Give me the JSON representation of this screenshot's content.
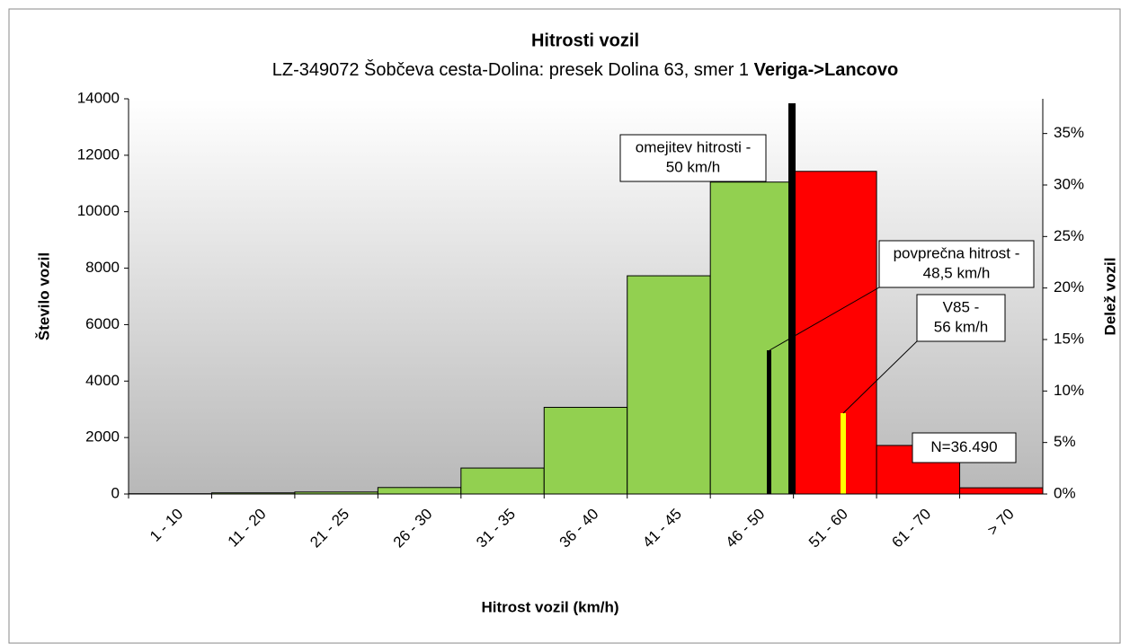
{
  "chart_data": {
    "type": "bar",
    "title": "Hitrosti vozil",
    "subtitle": "LZ-349072 Šobčeva cesta-Dolina: presek Dolina 63, smer 1",
    "subtitle_bold": "Veriga->Lancovo",
    "x_label": "Hitrost vozil (km/h)",
    "y_label": "Število vozil",
    "y2_label": "Delež vozil",
    "categories": [
      "1 - 10",
      "11 - 20",
      "21 - 25",
      "26 - 30",
      "31 - 35",
      "36 - 40",
      "41 - 45",
      "46 - 50",
      "51 - 60",
      "61 - 70",
      "> 70"
    ],
    "values": [
      10,
      40,
      70,
      230,
      920,
      3070,
      7730,
      11050,
      11430,
      1720,
      220
    ],
    "colors": [
      "#92d050",
      "#92d050",
      "#92d050",
      "#92d050",
      "#92d050",
      "#92d050",
      "#92d050",
      "#92d050",
      "#ff0000",
      "#ff0000",
      "#ff0000"
    ],
    "ylim": [
      0,
      14000
    ],
    "yticks": [
      0,
      2000,
      4000,
      6000,
      8000,
      10000,
      12000,
      14000
    ],
    "y2lim": [
      0,
      38.37
    ],
    "y2ticks": [
      {
        "value": 0,
        "label": "0%"
      },
      {
        "value": 5,
        "label": "5%"
      },
      {
        "value": 10,
        "label": "10%"
      },
      {
        "value": 15,
        "label": "15%"
      },
      {
        "value": 20,
        "label": "20%"
      },
      {
        "value": 25,
        "label": "25%"
      },
      {
        "value": 30,
        "label": "30%"
      },
      {
        "value": 35,
        "label": "35%"
      }
    ],
    "annotations": [
      {
        "lines": [
          "omejitev hitrosti -",
          "50 km/h"
        ]
      },
      {
        "lines": [
          "povprečna hitrost -",
          "48,5 km/h"
        ]
      },
      {
        "lines": [
          "V85 -",
          "56 km/h"
        ]
      },
      {
        "lines": [
          "N=36.490"
        ]
      }
    ]
  }
}
